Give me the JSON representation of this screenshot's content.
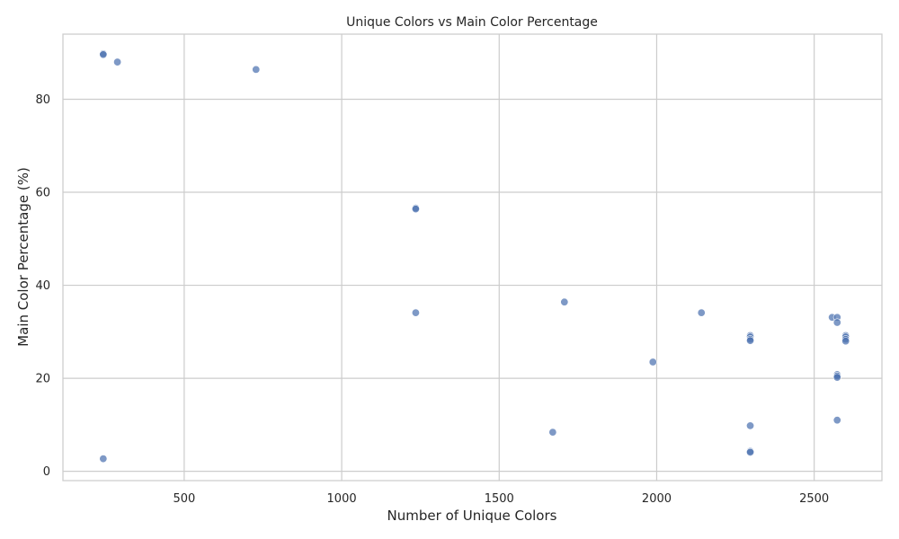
{
  "chart_data": {
    "type": "scatter",
    "title": "Unique Colors vs Main Color Percentage",
    "xlabel": "Number of Unique Colors",
    "ylabel": "Main Color Percentage (%)",
    "xlim": [
      115,
      2715
    ],
    "ylim": [
      -2,
      94
    ],
    "x_ticks": [
      500,
      1000,
      1500,
      2000,
      2500
    ],
    "y_ticks": [
      0,
      20,
      40,
      60,
      80
    ],
    "grid": true,
    "legend": "none",
    "point_color": "#4c72b0",
    "points": [
      {
        "x": 243,
        "y": 89.8
      },
      {
        "x": 243,
        "y": 89.6
      },
      {
        "x": 288,
        "y": 88.0
      },
      {
        "x": 728,
        "y": 86.4
      },
      {
        "x": 1235,
        "y": 56.6
      },
      {
        "x": 1235,
        "y": 56.4
      },
      {
        "x": 1235,
        "y": 34.1
      },
      {
        "x": 1707,
        "y": 36.4
      },
      {
        "x": 2142,
        "y": 34.1
      },
      {
        "x": 2557,
        "y": 33.1
      },
      {
        "x": 2573,
        "y": 33.1
      },
      {
        "x": 2573,
        "y": 32.0
      },
      {
        "x": 2297,
        "y": 29.2
      },
      {
        "x": 2297,
        "y": 28.9
      },
      {
        "x": 2297,
        "y": 28.4
      },
      {
        "x": 2297,
        "y": 28.1
      },
      {
        "x": 2600,
        "y": 29.2
      },
      {
        "x": 2600,
        "y": 28.9
      },
      {
        "x": 2600,
        "y": 28.4
      },
      {
        "x": 2600,
        "y": 28.0
      },
      {
        "x": 1988,
        "y": 23.5
      },
      {
        "x": 2573,
        "y": 20.8
      },
      {
        "x": 2573,
        "y": 20.5
      },
      {
        "x": 2573,
        "y": 20.2
      },
      {
        "x": 2573,
        "y": 11.0
      },
      {
        "x": 2297,
        "y": 9.8
      },
      {
        "x": 1670,
        "y": 8.4
      },
      {
        "x": 2297,
        "y": 4.3
      },
      {
        "x": 2297,
        "y": 4.1
      },
      {
        "x": 243,
        "y": 2.7
      }
    ]
  }
}
